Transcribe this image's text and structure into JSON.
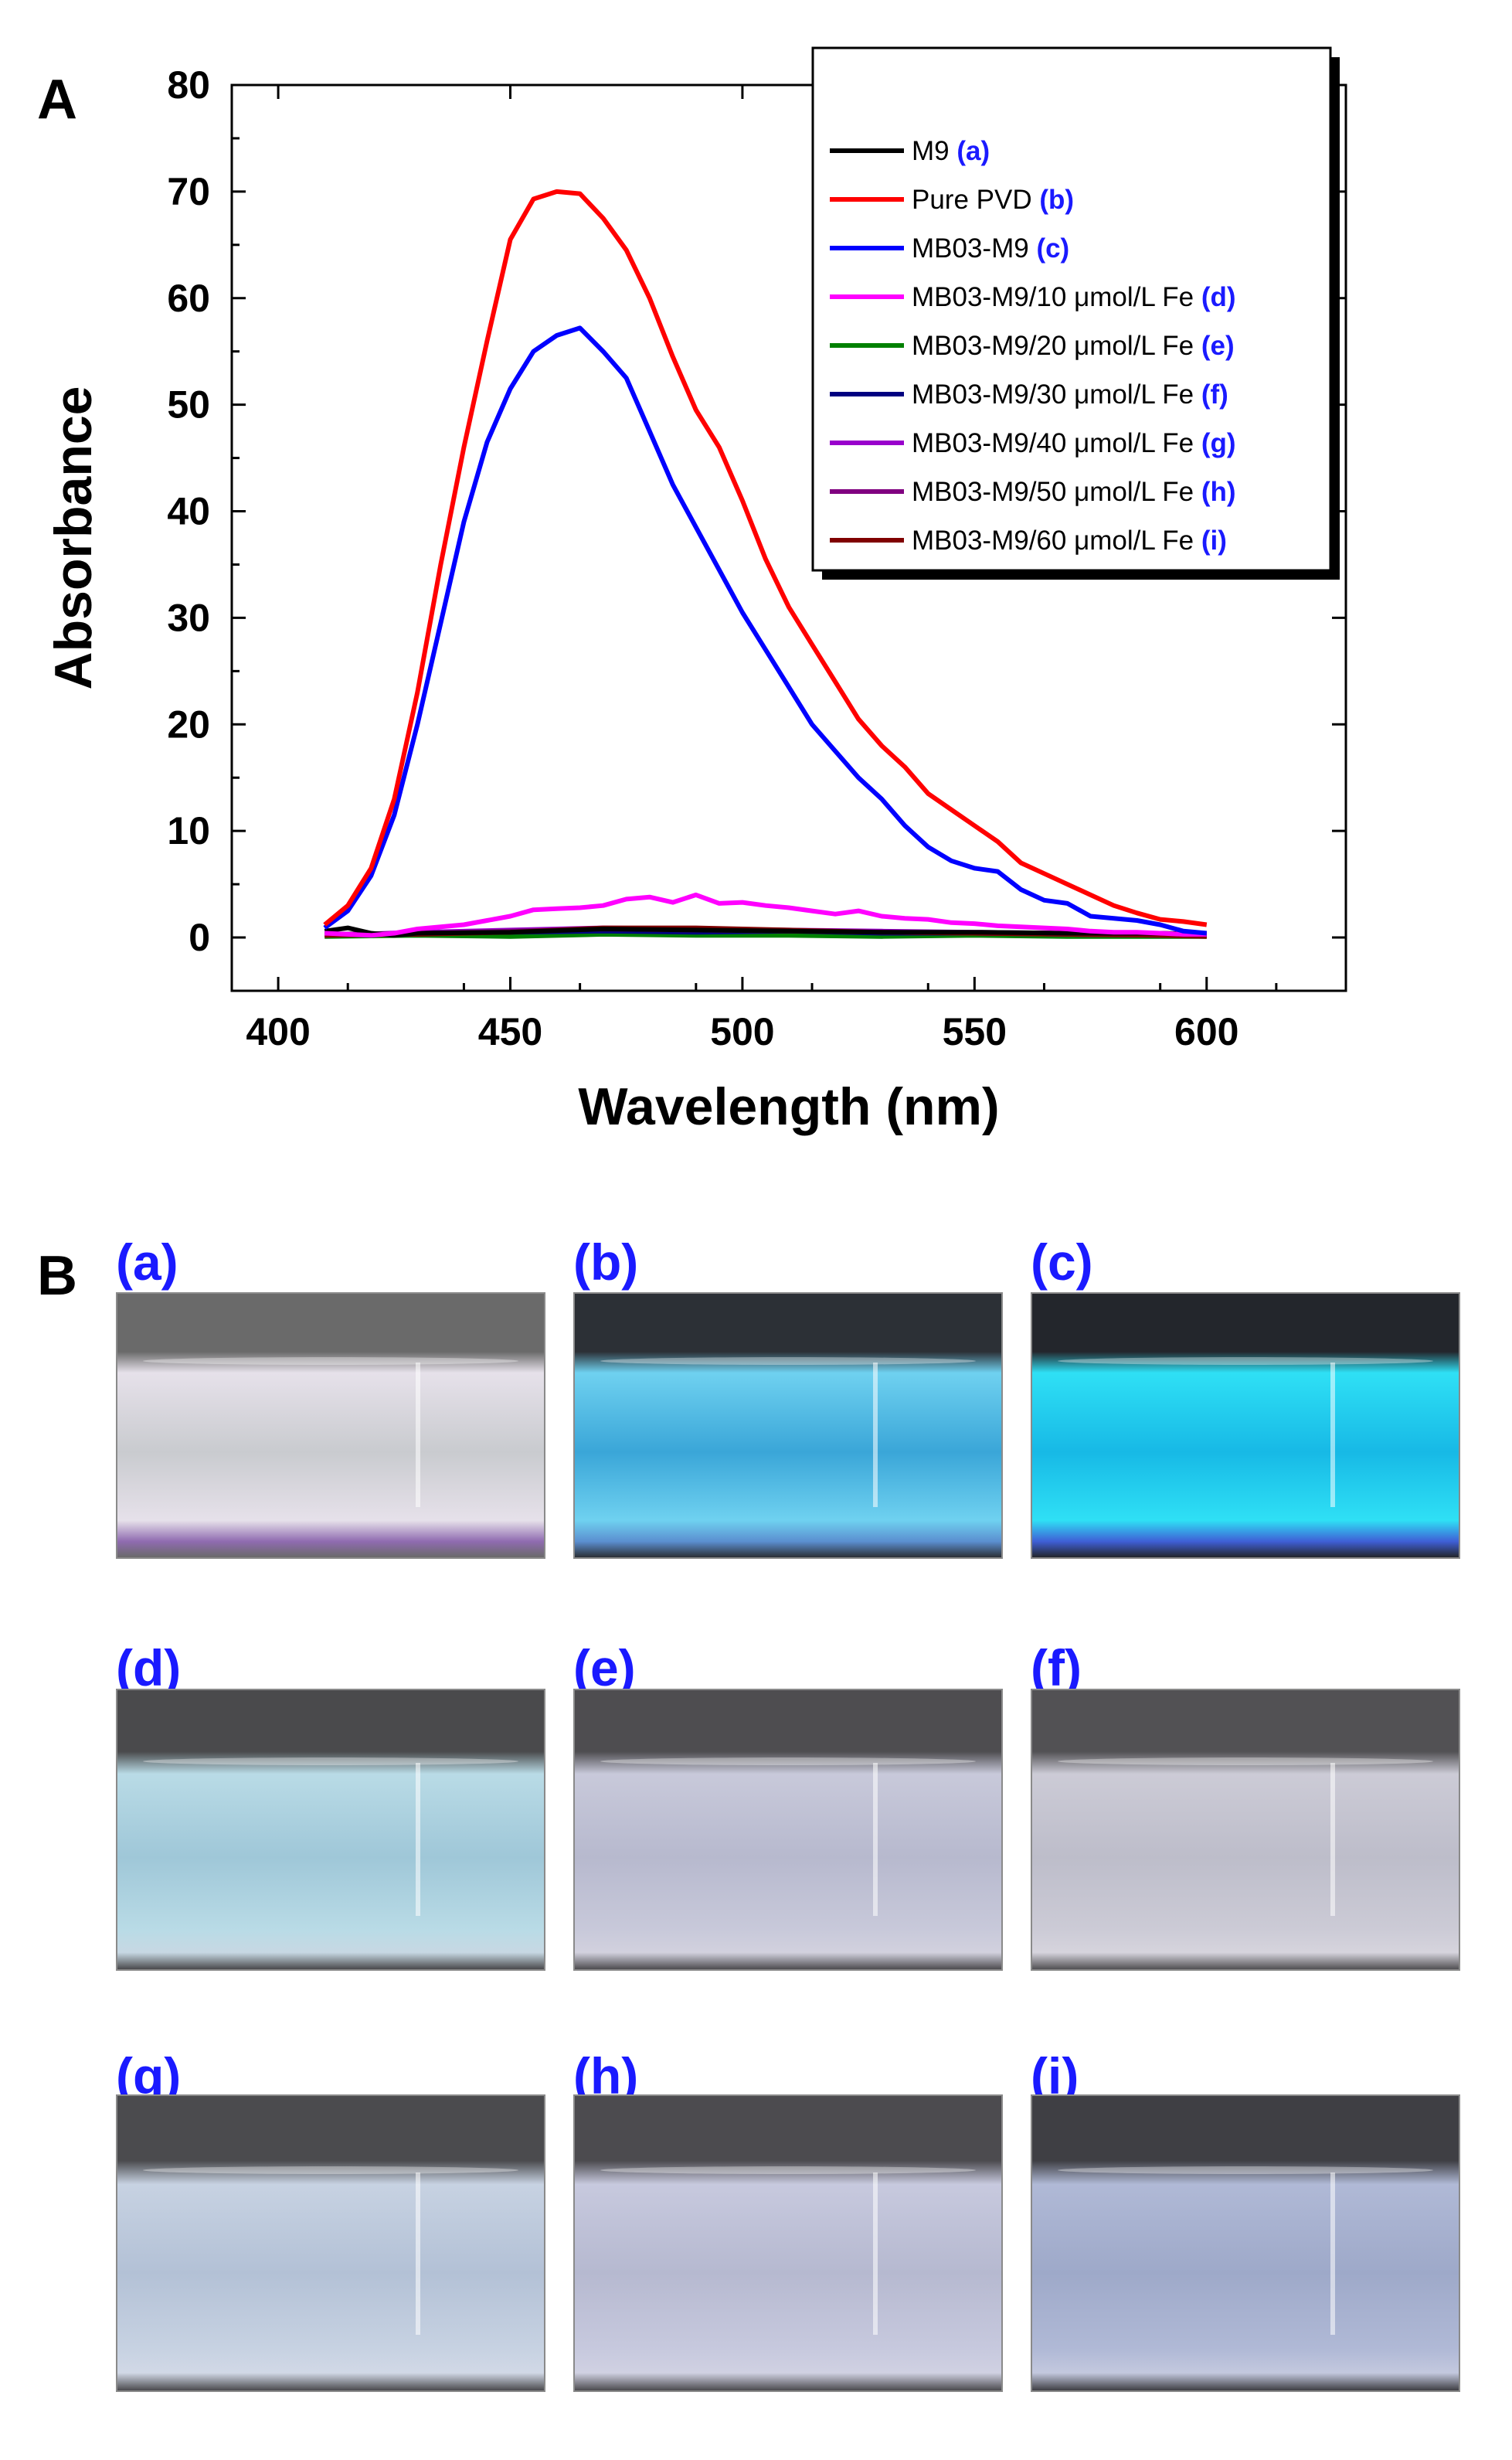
{
  "panels": {
    "a_letter": "A",
    "b_letter": "B"
  },
  "chart_data": {
    "type": "line",
    "title": "",
    "xlabel": "Wavelength (nm)",
    "ylabel": "Absorbance",
    "xlim": [
      390,
      630
    ],
    "ylim": [
      -5,
      80
    ],
    "xticks": [
      400,
      450,
      500,
      550,
      600
    ],
    "yticks": [
      0,
      10,
      20,
      30,
      40,
      50,
      60,
      70,
      80
    ],
    "legend_position": "top-right",
    "series": [
      {
        "name": "M9",
        "tag": "(a)",
        "color": "#000000",
        "x": [
          410,
          415,
          420,
          425,
          430,
          450,
          470,
          490,
          510,
          530,
          550,
          570,
          590,
          600
        ],
        "y": [
          0.6,
          0.9,
          0.4,
          0.2,
          0.4,
          0.5,
          0.8,
          0.7,
          0.6,
          0.5,
          0.5,
          0.4,
          0.4,
          0.3
        ]
      },
      {
        "name": "Pure PVD",
        "tag": "(b)",
        "color": "#ff0000",
        "x": [
          410,
          415,
          420,
          425,
          430,
          435,
          440,
          445,
          450,
          455,
          460,
          465,
          470,
          475,
          480,
          485,
          490,
          495,
          500,
          505,
          510,
          515,
          520,
          525,
          530,
          535,
          540,
          545,
          550,
          555,
          560,
          565,
          570,
          575,
          580,
          585,
          590,
          595,
          600
        ],
        "y": [
          1.2,
          3.0,
          6.5,
          13.0,
          23.0,
          35.0,
          46.0,
          56.0,
          65.5,
          69.3,
          70.0,
          69.8,
          67.5,
          64.5,
          60.0,
          54.5,
          49.5,
          46.0,
          41.0,
          35.5,
          31.0,
          27.5,
          24.0,
          20.5,
          18.0,
          16.0,
          13.5,
          12.0,
          10.5,
          9.0,
          7.0,
          6.0,
          5.0,
          4.0,
          3.0,
          2.3,
          1.7,
          1.5,
          1.2
        ]
      },
      {
        "name": "MB03-M9",
        "tag": "(c)",
        "color": "#0000ff",
        "x": [
          410,
          415,
          420,
          425,
          430,
          435,
          440,
          445,
          450,
          455,
          460,
          465,
          470,
          475,
          480,
          485,
          490,
          495,
          500,
          505,
          510,
          515,
          520,
          525,
          530,
          535,
          540,
          545,
          550,
          555,
          560,
          565,
          570,
          575,
          580,
          585,
          590,
          595,
          600
        ],
        "y": [
          0.9,
          2.5,
          5.8,
          11.5,
          20.0,
          29.5,
          39.0,
          46.5,
          51.5,
          55.0,
          56.5,
          57.2,
          55.0,
          52.5,
          47.5,
          42.5,
          38.5,
          34.5,
          30.5,
          27.0,
          23.5,
          20.0,
          17.5,
          15.0,
          13.0,
          10.5,
          8.5,
          7.2,
          6.5,
          6.2,
          4.5,
          3.5,
          3.2,
          2.0,
          1.8,
          1.6,
          1.2,
          0.6,
          0.4
        ]
      },
      {
        "name": "MB03-M9/10 μmol/L Fe",
        "tag": "(d)",
        "color": "#ff00ff",
        "x": [
          410,
          415,
          420,
          425,
          430,
          435,
          440,
          445,
          450,
          455,
          460,
          465,
          470,
          475,
          480,
          485,
          490,
          495,
          500,
          505,
          510,
          515,
          520,
          525,
          530,
          535,
          540,
          545,
          550,
          555,
          560,
          565,
          570,
          575,
          580,
          585,
          590,
          595,
          600
        ],
        "y": [
          0.4,
          0.3,
          0.2,
          0.4,
          0.8,
          1.0,
          1.2,
          1.6,
          2.0,
          2.6,
          2.7,
          2.8,
          3.0,
          3.6,
          3.8,
          3.3,
          4.0,
          3.2,
          3.3,
          3.0,
          2.8,
          2.5,
          2.2,
          2.5,
          2.0,
          1.8,
          1.7,
          1.4,
          1.3,
          1.1,
          1.0,
          0.9,
          0.8,
          0.6,
          0.5,
          0.5,
          0.4,
          0.3,
          0.3
        ]
      },
      {
        "name": "MB03-M9/20 μmol/L Fe",
        "tag": "(e)",
        "color": "#008000",
        "x": [
          410,
          430,
          450,
          470,
          490,
          510,
          530,
          550,
          570,
          590,
          600
        ],
        "y": [
          0.1,
          0.2,
          0.1,
          0.3,
          0.2,
          0.2,
          0.1,
          0.2,
          0.1,
          0.1,
          0.1
        ]
      },
      {
        "name": "MB03-M9/30 μmol/L Fe",
        "tag": "(f)",
        "color": "#000080",
        "x": [
          410,
          430,
          450,
          470,
          490,
          510,
          530,
          550,
          570,
          590,
          600
        ],
        "y": [
          0.3,
          0.4,
          0.5,
          0.6,
          0.5,
          0.6,
          0.4,
          0.4,
          0.3,
          0.2,
          0.2
        ]
      },
      {
        "name": "MB03-M9/40 μmol/L Fe",
        "tag": "(g)",
        "color": "#9900cc",
        "x": [
          410,
          430,
          450,
          470,
          490,
          510,
          530,
          550,
          570,
          590,
          600
        ],
        "y": [
          0.2,
          0.5,
          0.7,
          0.9,
          0.8,
          0.7,
          0.6,
          0.5,
          0.4,
          0.3,
          0.2
        ]
      },
      {
        "name": "MB03-M9/50 μmol/L Fe",
        "tag": "(h)",
        "color": "#800080",
        "x": [
          410,
          430,
          450,
          470,
          490,
          510,
          530,
          550,
          570,
          590,
          600
        ],
        "y": [
          0.3,
          0.4,
          0.6,
          0.8,
          0.7,
          0.6,
          0.5,
          0.4,
          0.3,
          0.2,
          0.2
        ]
      },
      {
        "name": "MB03-M9/60 μmol/L Fe",
        "tag": "(i)",
        "color": "#800000",
        "x": [
          410,
          430,
          450,
          470,
          490,
          510,
          530,
          550,
          570,
          590,
          600
        ],
        "y": [
          0.2,
          0.3,
          0.5,
          0.9,
          0.9,
          0.7,
          0.5,
          0.4,
          0.3,
          0.2,
          0.1
        ]
      }
    ]
  },
  "photos": {
    "label_color": "#1a1aff",
    "items": [
      {
        "label": "(a)",
        "liquid": "#c9cbcf",
        "glow": "#e6e1ea",
        "base": "#8f6bb0",
        "bg": "#6a6a6a"
      },
      {
        "label": "(b)",
        "liquid": "#3aa6d8",
        "glow": "#6fd1f0",
        "base": "#5b8fd0",
        "bg": "#2c3036"
      },
      {
        "label": "(c)",
        "liquid": "#17b9e6",
        "glow": "#2fe0f5",
        "base": "#3f5fd6",
        "bg": "#23262c"
      },
      {
        "label": "(d)",
        "liquid": "#9fc7d8",
        "glow": "#b9dbe6",
        "base": "#c7d8e3",
        "bg": "#4a4a4c"
      },
      {
        "label": "(e)",
        "liquid": "#b7b9ce",
        "glow": "#c8c9da",
        "base": "#d2d1de",
        "bg": "#4e4d50"
      },
      {
        "label": "(f)",
        "liquid": "#bdbdca",
        "glow": "#cccbd6",
        "base": "#d6d4dd",
        "bg": "#525154"
      },
      {
        "label": "(g)",
        "liquid": "#b3c1d6",
        "glow": "#c7d2e2",
        "base": "#d1d8e6",
        "bg": "#4b4b4e"
      },
      {
        "label": "(h)",
        "liquid": "#b6b9d0",
        "glow": "#c7c9de",
        "base": "#d0d1e2",
        "bg": "#4c4b4f"
      },
      {
        "label": "(i)",
        "liquid": "#9ea9c9",
        "glow": "#b0b9d6",
        "base": "#c3c8de",
        "bg": "#3f3f44"
      }
    ]
  }
}
